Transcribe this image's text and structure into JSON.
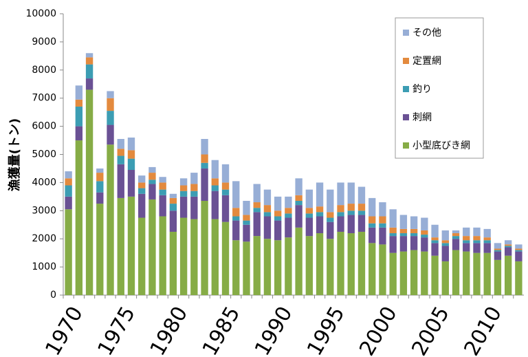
{
  "chart_data": {
    "type": "stacked_bar",
    "y_label": "漁獲量(トン)",
    "categories": [
      "1970",
      null,
      null,
      null,
      null,
      "1975",
      null,
      null,
      null,
      null,
      "1980",
      null,
      null,
      null,
      null,
      "1985",
      null,
      null,
      null,
      null,
      "1990",
      null,
      null,
      null,
      null,
      "1995",
      null,
      null,
      null,
      null,
      "2000",
      null,
      null,
      null,
      null,
      "2005",
      null,
      null,
      null,
      null,
      "2010",
      null,
      null,
      null
    ],
    "ylim": [
      0,
      10000
    ],
    "yticks": [
      0,
      1000,
      2000,
      3000,
      4000,
      5000,
      6000,
      7000,
      8000,
      9000,
      10000
    ],
    "grid": false,
    "legend": "top-right",
    "series": [
      {
        "name": "小型底びき網",
        "color": "#86ac46",
        "values": [
          3050,
          5500,
          7300,
          3250,
          5350,
          3450,
          3500,
          2750,
          3400,
          2800,
          2250,
          2750,
          2700,
          3350,
          2700,
          2600,
          1950,
          1900,
          2100,
          2000,
          1950,
          2050,
          2400,
          2100,
          2200,
          2000,
          2250,
          2200,
          2250,
          1850,
          1800,
          1500,
          1550,
          1600,
          1550,
          1400,
          1200,
          1600,
          1550,
          1500,
          1500,
          1250,
          1400,
          1200
        ]
      },
      {
        "name": "刺網",
        "color": "#6a5194",
        "values": [
          450,
          500,
          400,
          400,
          700,
          1200,
          950,
          850,
          550,
          750,
          750,
          750,
          800,
          1150,
          1000,
          950,
          700,
          600,
          850,
          800,
          700,
          700,
          800,
          650,
          600,
          600,
          550,
          650,
          600,
          550,
          600,
          600,
          550,
          500,
          500,
          450,
          550,
          400,
          300,
          350,
          350,
          300,
          300,
          350
        ]
      },
      {
        "name": "釣り",
        "color": "#3c9db3",
        "values": [
          400,
          700,
          500,
          400,
          500,
          300,
          400,
          200,
          150,
          200,
          250,
          200,
          200,
          200,
          200,
          200,
          150,
          150,
          150,
          150,
          150,
          150,
          150,
          150,
          150,
          150,
          150,
          150,
          150,
          150,
          150,
          100,
          100,
          100,
          100,
          100,
          100,
          100,
          100,
          100,
          100,
          50,
          50,
          50
        ]
      },
      {
        "name": "定置網",
        "color": "#e38a3e",
        "values": [
          250,
          250,
          250,
          300,
          450,
          250,
          300,
          200,
          250,
          250,
          200,
          200,
          250,
          300,
          250,
          250,
          300,
          200,
          200,
          250,
          200,
          200,
          200,
          200,
          200,
          200,
          250,
          250,
          250,
          250,
          250,
          200,
          150,
          150,
          150,
          100,
          100,
          100,
          150,
          150,
          100,
          50,
          50,
          50
        ]
      },
      {
        "name": "その他",
        "color": "#97aed6",
        "values": [
          250,
          500,
          150,
          150,
          250,
          350,
          450,
          250,
          200,
          200,
          150,
          250,
          400,
          550,
          650,
          650,
          950,
          500,
          650,
          550,
          500,
          400,
          600,
          650,
          850,
          800,
          800,
          750,
          600,
          650,
          500,
          650,
          500,
          450,
          450,
          450,
          350,
          100,
          300,
          300,
          300,
          200,
          150,
          150
        ]
      }
    ]
  }
}
